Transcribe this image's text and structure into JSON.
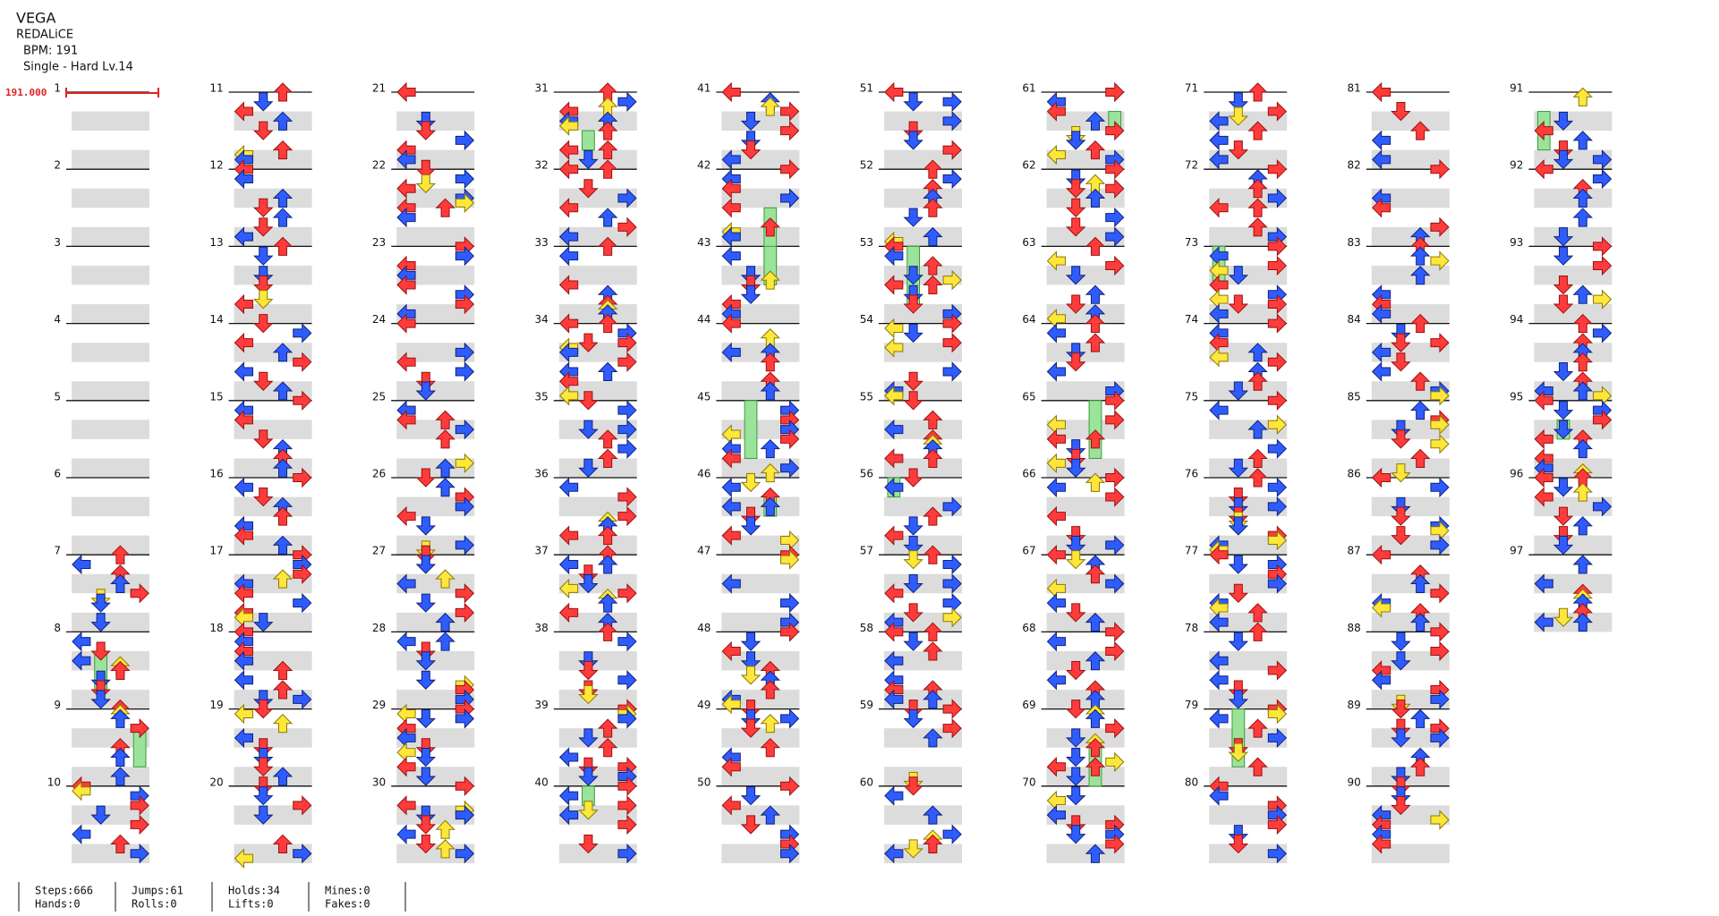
{
  "header": {
    "title": "VEGA",
    "artist": "REDALiCE",
    "bpm": "BPM: 191",
    "difficulty": "Single - Hard  Lv.14"
  },
  "bpm_marker": "191.000",
  "measures": [
    1,
    2,
    3,
    4,
    5,
    6,
    7,
    8,
    9,
    10,
    11,
    12,
    13,
    14,
    15,
    16,
    17,
    18,
    19,
    20,
    21,
    22,
    23,
    24,
    25,
    26,
    27,
    28,
    29,
    30,
    31,
    32,
    33,
    34,
    35,
    36,
    37,
    38,
    39,
    40,
    41,
    42,
    43,
    44,
    45,
    46,
    47,
    48,
    49,
    50,
    51,
    52,
    53,
    54,
    55,
    56,
    57,
    58,
    59,
    60,
    61,
    62,
    63,
    64,
    65,
    66,
    67,
    68,
    69,
    70,
    71,
    72,
    73,
    74,
    75,
    76,
    77,
    78,
    79,
    80,
    81,
    82,
    83,
    84,
    85,
    86,
    87,
    88,
    89,
    90,
    91,
    92,
    93,
    94,
    95,
    96,
    97
  ],
  "stats": [
    [
      "Steps:666",
      "Hands:0"
    ],
    [
      "Jumps:61",
      "Rolls:0"
    ],
    [
      "Holds:34",
      "Lifts:0"
    ],
    [
      "Mines:0",
      "Fakes:0"
    ]
  ]
}
